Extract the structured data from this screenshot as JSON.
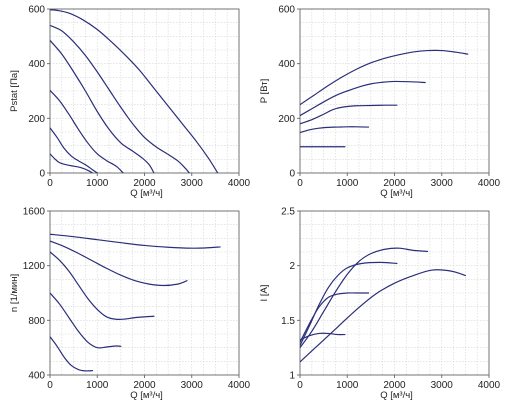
{
  "colors": {
    "curve": "#2b2f78",
    "grid": "#d4d4d4",
    "axis": "#666666",
    "text": "#222222"
  },
  "chart_data": [
    {
      "type": "line",
      "xlabel": "Q [м³/ч]",
      "ylabel": "Pstat [Па]",
      "xlim": [
        0,
        4000
      ],
      "ylim": [
        0,
        600
      ],
      "xticks": [
        0,
        1000,
        2000,
        3000,
        4000
      ],
      "yticks": [
        0,
        200,
        400,
        600
      ],
      "grid": true,
      "series": [
        {
          "points": [
            [
              0,
              597
            ],
            [
              150,
              595
            ],
            [
              400,
              585
            ],
            [
              700,
              560
            ],
            [
              1000,
              525
            ],
            [
              1300,
              480
            ],
            [
              1600,
              430
            ],
            [
              1900,
              375
            ],
            [
              2200,
              310
            ],
            [
              2500,
              245
            ],
            [
              2800,
              180
            ],
            [
              3100,
              115
            ],
            [
              3350,
              55
            ],
            [
              3550,
              0
            ]
          ]
        },
        {
          "points": [
            [
              0,
              540
            ],
            [
              250,
              520
            ],
            [
              500,
              480
            ],
            [
              750,
              430
            ],
            [
              1000,
              370
            ],
            [
              1250,
              305
            ],
            [
              1500,
              240
            ],
            [
              1750,
              180
            ],
            [
              2000,
              130
            ],
            [
              2250,
              95
            ],
            [
              2500,
              68
            ],
            [
              2700,
              45
            ],
            [
              2850,
              20
            ],
            [
              2950,
              0
            ]
          ]
        },
        {
          "points": [
            [
              0,
              485
            ],
            [
              250,
              435
            ],
            [
              500,
              370
            ],
            [
              750,
              300
            ],
            [
              1000,
              225
            ],
            [
              1250,
              160
            ],
            [
              1500,
              110
            ],
            [
              1750,
              80
            ],
            [
              1950,
              55
            ],
            [
              2100,
              30
            ],
            [
              2200,
              0
            ]
          ]
        },
        {
          "points": [
            [
              0,
              302
            ],
            [
              200,
              265
            ],
            [
              400,
              215
            ],
            [
              600,
              160
            ],
            [
              800,
              110
            ],
            [
              1000,
              70
            ],
            [
              1200,
              45
            ],
            [
              1400,
              25
            ],
            [
              1550,
              0
            ]
          ]
        },
        {
          "points": [
            [
              0,
              165
            ],
            [
              150,
              130
            ],
            [
              300,
              90
            ],
            [
              450,
              62
            ],
            [
              600,
              45
            ],
            [
              750,
              30
            ],
            [
              900,
              12
            ],
            [
              1000,
              0
            ]
          ]
        },
        {
          "points": [
            [
              0,
              70
            ],
            [
              100,
              52
            ],
            [
              200,
              38
            ],
            [
              350,
              30
            ],
            [
              500,
              25
            ],
            [
              650,
              20
            ],
            [
              800,
              10
            ],
            [
              900,
              0
            ]
          ]
        }
      ]
    },
    {
      "type": "line",
      "xlabel": "Q [м³/ч]",
      "ylabel": "P [Вт]",
      "xlim": [
        0,
        4000
      ],
      "ylim": [
        0,
        600
      ],
      "xticks": [
        0,
        1000,
        2000,
        3000,
        4000
      ],
      "yticks": [
        0,
        200,
        400,
        600
      ],
      "grid": true,
      "series": [
        {
          "points": [
            [
              0,
              250
            ],
            [
              300,
              285
            ],
            [
              600,
              320
            ],
            [
              900,
              352
            ],
            [
              1200,
              380
            ],
            [
              1500,
              403
            ],
            [
              1800,
              420
            ],
            [
              2100,
              433
            ],
            [
              2400,
              443
            ],
            [
              2700,
              448
            ],
            [
              3000,
              448
            ],
            [
              3300,
              442
            ],
            [
              3550,
              435
            ]
          ]
        },
        {
          "points": [
            [
              0,
              210
            ],
            [
              250,
              235
            ],
            [
              500,
              260
            ],
            [
              750,
              283
            ],
            [
              1000,
              300
            ],
            [
              1250,
              315
            ],
            [
              1500,
              326
            ],
            [
              1750,
              332
            ],
            [
              2000,
              335
            ],
            [
              2300,
              334
            ],
            [
              2650,
              331
            ]
          ]
        },
        {
          "points": [
            [
              0,
              180
            ],
            [
              250,
              195
            ],
            [
              500,
              215
            ],
            [
              700,
              232
            ],
            [
              900,
              241
            ],
            [
              1200,
              246
            ],
            [
              1500,
              247
            ],
            [
              1800,
              248
            ],
            [
              2050,
              248
            ]
          ]
        },
        {
          "points": [
            [
              0,
              148
            ],
            [
              200,
              158
            ],
            [
              400,
              164
            ],
            [
              600,
              167
            ],
            [
              800,
              168
            ],
            [
              1000,
              169
            ],
            [
              1200,
              169
            ],
            [
              1450,
              168
            ]
          ]
        },
        {
          "points": [
            [
              0,
              96
            ],
            [
              300,
              96
            ],
            [
              600,
              96
            ],
            [
              950,
              96
            ]
          ]
        }
      ]
    },
    {
      "type": "line",
      "xlabel": "Q [м³/ч]",
      "ylabel": "n [1/мин]",
      "xlim": [
        0,
        4000
      ],
      "ylim": [
        400,
        1600
      ],
      "xticks": [
        0,
        1000,
        2000,
        3000,
        4000
      ],
      "yticks": [
        400,
        800,
        1200,
        1600
      ],
      "grid": true,
      "series": [
        {
          "points": [
            [
              0,
              1430
            ],
            [
              500,
              1412
            ],
            [
              1000,
              1390
            ],
            [
              1500,
              1368
            ],
            [
              2000,
              1348
            ],
            [
              2500,
              1335
            ],
            [
              3000,
              1328
            ],
            [
              3300,
              1330
            ],
            [
              3600,
              1337
            ]
          ]
        },
        {
          "points": [
            [
              0,
              1380
            ],
            [
              300,
              1340
            ],
            [
              600,
              1290
            ],
            [
              900,
              1235
            ],
            [
              1200,
              1180
            ],
            [
              1500,
              1130
            ],
            [
              1800,
              1090
            ],
            [
              2100,
              1065
            ],
            [
              2400,
              1055
            ],
            [
              2700,
              1065
            ],
            [
              2900,
              1090
            ]
          ]
        },
        {
          "points": [
            [
              0,
              1300
            ],
            [
              200,
              1240
            ],
            [
              400,
              1160
            ],
            [
              600,
              1060
            ],
            [
              800,
              960
            ],
            [
              1000,
              880
            ],
            [
              1200,
              825
            ],
            [
              1400,
              808
            ],
            [
              1600,
              810
            ],
            [
              1800,
              820
            ],
            [
              2200,
              830
            ]
          ]
        },
        {
          "points": [
            [
              0,
              1000
            ],
            [
              200,
              920
            ],
            [
              400,
              820
            ],
            [
              600,
              720
            ],
            [
              800,
              640
            ],
            [
              1000,
              600
            ],
            [
              1200,
              605
            ],
            [
              1400,
              612
            ],
            [
              1500,
              610
            ]
          ]
        },
        {
          "points": [
            [
              0,
              680
            ],
            [
              150,
              610
            ],
            [
              300,
              530
            ],
            [
              450,
              470
            ],
            [
              600,
              440
            ],
            [
              750,
              430
            ],
            [
              900,
              432
            ]
          ]
        }
      ]
    },
    {
      "type": "line",
      "xlabel": "Q [м³/ч]",
      "ylabel": "I [A]",
      "xlim": [
        0,
        4000
      ],
      "ylim": [
        1,
        2.5
      ],
      "xticks": [
        0,
        1000,
        2000,
        3000,
        4000
      ],
      "yticks": [
        1,
        1.5,
        2,
        2.5
      ],
      "grid": true,
      "series": [
        {
          "points": [
            [
              0,
              1.12
            ],
            [
              400,
              1.28
            ],
            [
              800,
              1.44
            ],
            [
              1200,
              1.6
            ],
            [
              1600,
              1.74
            ],
            [
              2000,
              1.84
            ],
            [
              2400,
              1.91
            ],
            [
              2800,
              1.96
            ],
            [
              3200,
              1.95
            ],
            [
              3500,
              1.91
            ]
          ]
        },
        {
          "points": [
            [
              0,
              1.25
            ],
            [
              250,
              1.4
            ],
            [
              500,
              1.58
            ],
            [
              750,
              1.76
            ],
            [
              1000,
              1.92
            ],
            [
              1250,
              2.04
            ],
            [
              1500,
              2.11
            ],
            [
              1800,
              2.15
            ],
            [
              2100,
              2.16
            ],
            [
              2400,
              2.14
            ],
            [
              2700,
              2.13
            ]
          ]
        },
        {
          "points": [
            [
              0,
              1.27
            ],
            [
              200,
              1.45
            ],
            [
              400,
              1.64
            ],
            [
              600,
              1.8
            ],
            [
              800,
              1.91
            ],
            [
              1000,
              1.98
            ],
            [
              1300,
              2.02
            ],
            [
              1700,
              2.03
            ],
            [
              2050,
              2.02
            ]
          ]
        },
        {
          "points": [
            [
              0,
              1.3
            ],
            [
              200,
              1.47
            ],
            [
              400,
              1.62
            ],
            [
              600,
              1.71
            ],
            [
              800,
              1.74
            ],
            [
              1000,
              1.75
            ],
            [
              1200,
              1.75
            ],
            [
              1450,
              1.75
            ]
          ]
        },
        {
          "points": [
            [
              0,
              1.32
            ],
            [
              200,
              1.36
            ],
            [
              400,
              1.38
            ],
            [
              600,
              1.38
            ],
            [
              800,
              1.37
            ],
            [
              950,
              1.37
            ]
          ]
        }
      ]
    }
  ]
}
